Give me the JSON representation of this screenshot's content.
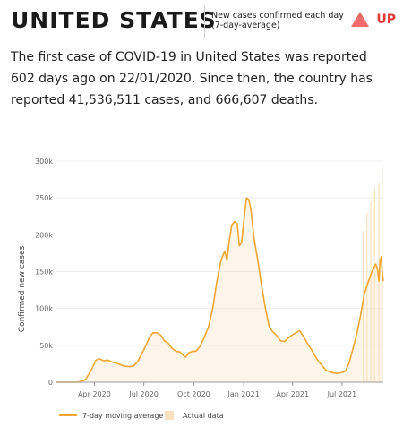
{
  "header": {
    "country": "UNITED STATES",
    "metric_label": "New cases confirmed each day (7-day-average)",
    "trend_icon": "triangle-up-icon",
    "trend_label": "UP"
  },
  "summary": {
    "text": "The first case of COVID-19 in United States was reported 602 days ago on 22/01/2020. Since then, the country has reported 41,536,511 cases, and 666,607 deaths."
  },
  "chart_data": {
    "type": "line",
    "ylabel": "Confirmed new cases",
    "ylim": [
      0,
      300000
    ],
    "yticks": [
      {
        "value": 0,
        "label": "0"
      },
      {
        "value": 50000,
        "label": "50k"
      },
      {
        "value": 100000,
        "label": "100k"
      },
      {
        "value": 150000,
        "label": "150k"
      },
      {
        "value": 200000,
        "label": "200k"
      },
      {
        "value": 250000,
        "label": "250k"
      },
      {
        "value": 300000,
        "label": "300k"
      }
    ],
    "xlim": [
      "2020-01-22",
      "2021-09-15"
    ],
    "xticks": [
      {
        "date": "2020-04-01",
        "label": "Apr 2020"
      },
      {
        "date": "2020-07-01",
        "label": "Jul 2020"
      },
      {
        "date": "2020-10-01",
        "label": "Oct 2020"
      },
      {
        "date": "2021-01-01",
        "label": "Jan 2021"
      },
      {
        "date": "2021-04-01",
        "label": "Apr 2021"
      },
      {
        "date": "2021-07-01",
        "label": "Jul 2021"
      }
    ],
    "grid": "horizontal",
    "legend_position": "bottom-left",
    "colors": {
      "moving_average": "#f0a630",
      "actual": "#f9e1c0"
    },
    "series": [
      {
        "name": "7-day moving average",
        "kind": "line",
        "points": [
          [
            "2020-01-22",
            0
          ],
          [
            "2020-03-01",
            0
          ],
          [
            "2020-03-15",
            3000
          ],
          [
            "2020-03-25",
            15000
          ],
          [
            "2020-04-04",
            30000
          ],
          [
            "2020-04-10",
            32000
          ],
          [
            "2020-04-18",
            29000
          ],
          [
            "2020-04-25",
            30000
          ],
          [
            "2020-05-05",
            27000
          ],
          [
            "2020-05-15",
            25000
          ],
          [
            "2020-05-25",
            22000
          ],
          [
            "2020-06-05",
            21000
          ],
          [
            "2020-06-12",
            22000
          ],
          [
            "2020-06-20",
            28000
          ],
          [
            "2020-06-28",
            40000
          ],
          [
            "2020-07-05",
            50000
          ],
          [
            "2020-07-12",
            62000
          ],
          [
            "2020-07-18",
            67000
          ],
          [
            "2020-07-25",
            67000
          ],
          [
            "2020-08-01",
            64000
          ],
          [
            "2020-08-08",
            56000
          ],
          [
            "2020-08-15",
            53000
          ],
          [
            "2020-08-22",
            46000
          ],
          [
            "2020-08-29",
            42000
          ],
          [
            "2020-09-06",
            41000
          ],
          [
            "2020-09-12",
            36000
          ],
          [
            "2020-09-16",
            34000
          ],
          [
            "2020-09-22",
            40000
          ],
          [
            "2020-09-29",
            42000
          ],
          [
            "2020-10-05",
            42000
          ],
          [
            "2020-10-12",
            48000
          ],
          [
            "2020-10-20",
            60000
          ],
          [
            "2020-10-28",
            75000
          ],
          [
            "2020-11-05",
            100000
          ],
          [
            "2020-11-12",
            135000
          ],
          [
            "2020-11-20",
            165000
          ],
          [
            "2020-11-27",
            178000
          ],
          [
            "2020-12-01",
            165000
          ],
          [
            "2020-12-05",
            190000
          ],
          [
            "2020-12-10",
            213000
          ],
          [
            "2020-12-15",
            218000
          ],
          [
            "2020-12-20",
            215000
          ],
          [
            "2020-12-24",
            185000
          ],
          [
            "2020-12-28",
            190000
          ],
          [
            "2021-01-02",
            225000
          ],
          [
            "2021-01-06",
            250000
          ],
          [
            "2021-01-10",
            248000
          ],
          [
            "2021-01-14",
            235000
          ],
          [
            "2021-01-20",
            195000
          ],
          [
            "2021-01-27",
            165000
          ],
          [
            "2021-02-03",
            130000
          ],
          [
            "2021-02-10",
            100000
          ],
          [
            "2021-02-17",
            75000
          ],
          [
            "2021-02-24",
            68000
          ],
          [
            "2021-03-03",
            63000
          ],
          [
            "2021-03-10",
            56000
          ],
          [
            "2021-03-17",
            55000
          ],
          [
            "2021-03-24",
            60000
          ],
          [
            "2021-03-31",
            64000
          ],
          [
            "2021-04-07",
            67000
          ],
          [
            "2021-04-14",
            70000
          ],
          [
            "2021-04-21",
            62000
          ],
          [
            "2021-04-28",
            53000
          ],
          [
            "2021-05-05",
            45000
          ],
          [
            "2021-05-12",
            36000
          ],
          [
            "2021-05-19",
            28000
          ],
          [
            "2021-05-26",
            22000
          ],
          [
            "2021-06-02",
            16000
          ],
          [
            "2021-06-09",
            14000
          ],
          [
            "2021-06-16",
            12500
          ],
          [
            "2021-06-23",
            12000
          ],
          [
            "2021-06-30",
            13000
          ],
          [
            "2021-07-07",
            15000
          ],
          [
            "2021-07-14",
            26000
          ],
          [
            "2021-07-21",
            45000
          ],
          [
            "2021-07-28",
            65000
          ],
          [
            "2021-08-04",
            90000
          ],
          [
            "2021-08-11",
            120000
          ],
          [
            "2021-08-18",
            135000
          ],
          [
            "2021-08-25",
            150000
          ],
          [
            "2021-09-01",
            160000
          ],
          [
            "2021-09-04",
            155000
          ],
          [
            "2021-09-07",
            137000
          ],
          [
            "2021-09-09",
            165000
          ],
          [
            "2021-09-11",
            170000
          ],
          [
            "2021-09-13",
            150000
          ],
          [
            "2021-09-15",
            137000
          ]
        ]
      },
      {
        "name": "Actual data",
        "kind": "bars",
        "note_unit": "daily confirmed cases",
        "spikes": [
          [
            "2021-08-09",
            205000
          ],
          [
            "2021-08-16",
            230000
          ],
          [
            "2021-08-23",
            245000
          ],
          [
            "2021-08-30",
            265000
          ],
          [
            "2021-09-07",
            270000
          ],
          [
            "2021-09-13",
            290000
          ]
        ]
      }
    ]
  }
}
